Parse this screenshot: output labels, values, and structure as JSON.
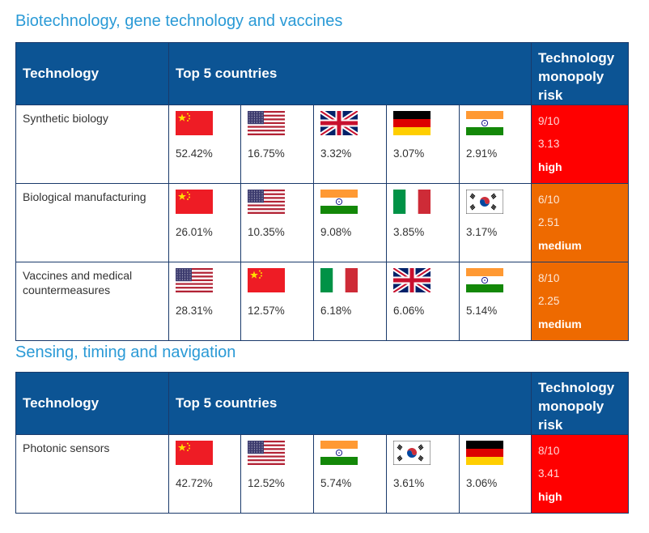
{
  "sections": [
    {
      "title": "Biotechnology, gene technology and vaccines",
      "header": {
        "technology": "Technology",
        "countries": "Top 5 countries",
        "risk": "Technology monopoly risk"
      },
      "rows": [
        {
          "technology": "Synthetic biology",
          "countries": [
            {
              "flag": "china",
              "pct": "52.42%"
            },
            {
              "flag": "usa",
              "pct": "16.75%"
            },
            {
              "flag": "uk",
              "pct": "3.32%"
            },
            {
              "flag": "germany",
              "pct": "3.07%"
            },
            {
              "flag": "india",
              "pct": "2.91%"
            }
          ],
          "score": "9/10",
          "index": "3.13",
          "level": "high",
          "color": "#ff0000"
        },
        {
          "technology": "Biological manufacturing",
          "countries": [
            {
              "flag": "china",
              "pct": "26.01%"
            },
            {
              "flag": "usa",
              "pct": "10.35%"
            },
            {
              "flag": "india",
              "pct": "9.08%"
            },
            {
              "flag": "italy",
              "pct": "3.85%"
            },
            {
              "flag": "south-korea",
              "pct": "3.17%"
            }
          ],
          "score": "6/10",
          "index": "2.51",
          "level": "medium",
          "color": "#ee6a00"
        },
        {
          "technology": "Vaccines and medical countermeasures",
          "countries": [
            {
              "flag": "usa",
              "pct": "28.31%"
            },
            {
              "flag": "china",
              "pct": "12.57%"
            },
            {
              "flag": "italy",
              "pct": "6.18%"
            },
            {
              "flag": "uk",
              "pct": "6.06%"
            },
            {
              "flag": "india",
              "pct": "5.14%"
            }
          ],
          "score": "8/10",
          "index": "2.25",
          "level": "medium",
          "color": "#ee6a00"
        }
      ]
    },
    {
      "title": "Sensing, timing and navigation",
      "header": {
        "technology": "Technology",
        "countries": "Top 5 countries",
        "risk": "Technology monopoly risk"
      },
      "rows": [
        {
          "technology": "Photonic sensors",
          "countries": [
            {
              "flag": "china",
              "pct": "42.72%"
            },
            {
              "flag": "usa",
              "pct": "12.52%"
            },
            {
              "flag": "india",
              "pct": "5.74%"
            },
            {
              "flag": "south-korea",
              "pct": "3.61%"
            },
            {
              "flag": "germany",
              "pct": "3.06%"
            }
          ],
          "score": "8/10",
          "index": "3.41",
          "level": "high",
          "color": "#ff0000"
        }
      ]
    }
  ]
}
